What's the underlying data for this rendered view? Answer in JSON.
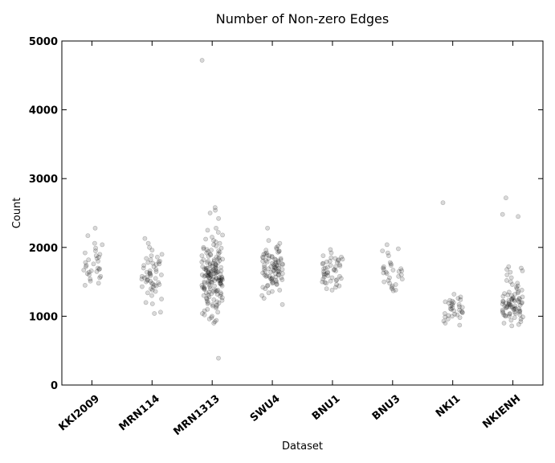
{
  "chart_data": {
    "type": "scatter",
    "title": "Number of Non-zero Edges",
    "xlabel": "Dataset",
    "ylabel": "Count",
    "ylim": [
      0,
      5000
    ],
    "yticks": [
      "0",
      "1000",
      "2000",
      "3000",
      "4000",
      "5000"
    ],
    "grid": false,
    "categories": [
      "KKI2009",
      "MRN114",
      "MRN1313",
      "SWU4",
      "BNU1",
      "BNU3",
      "NKI1",
      "NKIENH"
    ],
    "series": [
      {
        "category": "KKI2009",
        "values": [
          2280,
          2170,
          2060,
          2040,
          1990,
          1950,
          1920,
          1900,
          1880,
          1860,
          1840,
          1820,
          1800,
          1780,
          1760,
          1740,
          1720,
          1700,
          1690,
          1680,
          1670,
          1660,
          1650,
          1640,
          1620,
          1600,
          1580,
          1560,
          1540,
          1510,
          1480,
          1450
        ]
      },
      {
        "category": "MRN114",
        "values": [
          2130,
          2060,
          2000,
          1960,
          1900,
          1880,
          1860,
          1840,
          1820,
          1800,
          1790,
          1780,
          1770,
          1760,
          1750,
          1740,
          1720,
          1700,
          1680,
          1660,
          1650,
          1640,
          1630,
          1620,
          1610,
          1600,
          1590,
          1580,
          1570,
          1560,
          1550,
          1540,
          1530,
          1520,
          1510,
          1500,
          1490,
          1480,
          1470,
          1460,
          1450,
          1440,
          1430,
          1420,
          1400,
          1380,
          1360,
          1340,
          1300,
          1250,
          1200,
          1180,
          1060,
          1040
        ]
      },
      {
        "category": "MRN1313",
        "values": [
          4720,
          2580,
          2540,
          2500,
          2420,
          2280,
          2250,
          2220,
          2180,
          2150,
          2120,
          2100,
          2080,
          2060,
          2040,
          2020,
          2000,
          1990,
          1980,
          1970,
          1960,
          1950,
          1940,
          1930,
          1920,
          1910,
          1900,
          1890,
          1880,
          1870,
          1860,
          1850,
          1840,
          1830,
          1820,
          1810,
          1800,
          1790,
          1780,
          1770,
          1760,
          1750,
          1740,
          1730,
          1720,
          1710,
          1700,
          1690,
          1680,
          1670,
          1660,
          1650,
          1640,
          1630,
          1620,
          1610,
          1600,
          1590,
          1580,
          1570,
          1560,
          1550,
          1540,
          1530,
          1520,
          1510,
          1500,
          1490,
          1480,
          1470,
          1460,
          1450,
          1440,
          1430,
          1420,
          1410,
          1400,
          1390,
          1380,
          1370,
          1360,
          1350,
          1340,
          1330,
          1320,
          1310,
          1300,
          1290,
          1280,
          1270,
          1260,
          1250,
          1240,
          1230,
          1220,
          1210,
          1200,
          1190,
          1180,
          1170,
          1160,
          1150,
          1140,
          1120,
          1100,
          1080,
          1060,
          1040,
          1020,
          1000,
          980,
          960,
          940,
          920,
          900,
          1560,
          1580,
          1600,
          1620,
          1640,
          1660,
          1540,
          1520,
          1500,
          1480,
          1700,
          1720,
          1740,
          1760,
          1460,
          1440,
          1420,
          1400,
          1560,
          1590,
          1610,
          1630,
          1570,
          1550,
          1530,
          1650,
          1670,
          1690,
          1510,
          1490,
          1780,
          1800,
          1380,
          1360,
          1820,
          1340,
          1320,
          1600,
          1620,
          1580,
          1560,
          1640,
          1540,
          1660,
          1520,
          1680,
          1500,
          1700,
          1480,
          390
        ]
      },
      {
        "category": "SWU4",
        "values": [
          2280,
          2100,
          2060,
          2020,
          2000,
          1980,
          1960,
          1950,
          1940,
          1930,
          1920,
          1910,
          1900,
          1890,
          1880,
          1870,
          1860,
          1850,
          1840,
          1830,
          1820,
          1810,
          1800,
          1790,
          1780,
          1770,
          1760,
          1750,
          1740,
          1730,
          1720,
          1710,
          1700,
          1690,
          1680,
          1670,
          1660,
          1650,
          1640,
          1630,
          1620,
          1610,
          1600,
          1590,
          1580,
          1570,
          1560,
          1550,
          1540,
          1530,
          1520,
          1510,
          1500,
          1490,
          1480,
          1470,
          1460,
          1450,
          1440,
          1420,
          1400,
          1380,
          1360,
          1340,
          1300,
          1260,
          1170,
          1700,
          1720,
          1680,
          1660,
          1740,
          1640,
          1760,
          1620,
          1780,
          1600,
          1800,
          1580,
          1820,
          1560,
          1840,
          1540,
          1860,
          1690,
          1710,
          1650,
          1750
        ]
      },
      {
        "category": "BNU1",
        "values": [
          1970,
          1920,
          1880,
          1860,
          1850,
          1840,
          1830,
          1820,
          1810,
          1800,
          1790,
          1780,
          1770,
          1760,
          1750,
          1740,
          1730,
          1720,
          1710,
          1700,
          1690,
          1680,
          1670,
          1660,
          1650,
          1640,
          1630,
          1620,
          1610,
          1600,
          1590,
          1580,
          1570,
          1560,
          1550,
          1540,
          1530,
          1520,
          1510,
          1500,
          1490,
          1480,
          1460,
          1440,
          1420,
          1400,
          1380
        ]
      },
      {
        "category": "BNU3",
        "values": [
          2040,
          1980,
          1950,
          1920,
          1880,
          1780,
          1760,
          1740,
          1720,
          1700,
          1690,
          1680,
          1670,
          1660,
          1650,
          1640,
          1630,
          1620,
          1600,
          1580,
          1560,
          1540,
          1520,
          1500,
          1480,
          1460,
          1440,
          1420,
          1400,
          1380,
          1370
        ]
      },
      {
        "category": "NKI1",
        "values": [
          2650,
          1320,
          1280,
          1260,
          1240,
          1230,
          1220,
          1210,
          1200,
          1190,
          1180,
          1170,
          1160,
          1150,
          1140,
          1130,
          1120,
          1110,
          1100,
          1090,
          1080,
          1070,
          1060,
          1050,
          1040,
          1030,
          1020,
          1010,
          1000,
          990,
          980,
          960,
          930,
          900,
          870
        ]
      },
      {
        "category": "NKIENH",
        "values": [
          2720,
          2480,
          2450,
          1720,
          1700,
          1680,
          1660,
          1640,
          1600,
          1560,
          1520,
          1500,
          1480,
          1460,
          1440,
          1420,
          1400,
          1380,
          1360,
          1350,
          1340,
          1330,
          1320,
          1310,
          1300,
          1290,
          1280,
          1270,
          1260,
          1250,
          1240,
          1230,
          1220,
          1210,
          1200,
          1190,
          1180,
          1170,
          1160,
          1150,
          1140,
          1130,
          1120,
          1110,
          1100,
          1090,
          1080,
          1070,
          1060,
          1050,
          1040,
          1030,
          1020,
          1010,
          1000,
          990,
          980,
          960,
          940,
          920,
          900,
          880,
          860,
          1250,
          1230,
          1210,
          1190,
          1170,
          1150,
          1130,
          1110,
          1260,
          1240,
          1220,
          1200,
          1180,
          1160,
          1140,
          1120,
          1100,
          1080,
          1060,
          1040,
          1020,
          1000
        ]
      }
    ]
  }
}
